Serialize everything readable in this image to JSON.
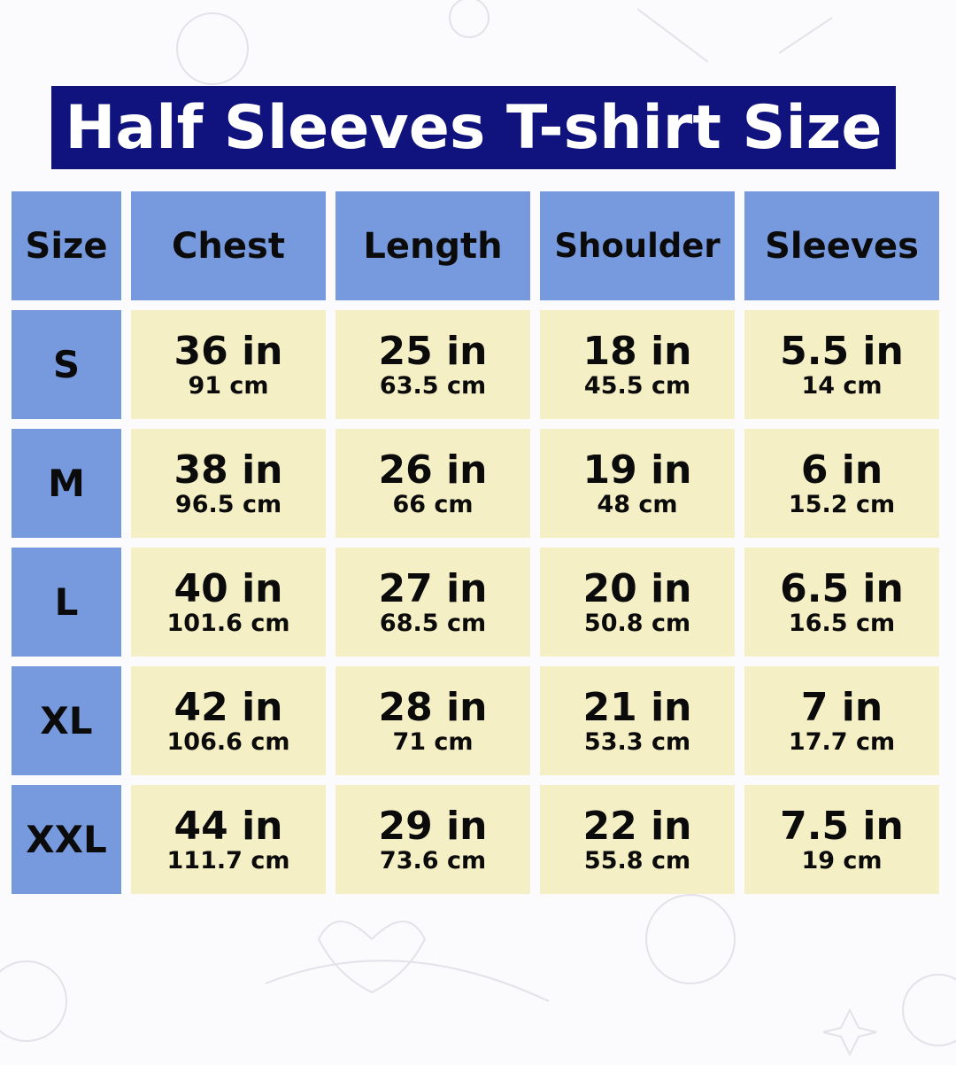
{
  "title": "Half Sleeves T-shirt Size",
  "colors": {
    "title_bg": "#10127e",
    "header_bg": "#7799dd",
    "cell_bg": "#f5efc6"
  },
  "headers": [
    "Size",
    "Chest",
    "Length",
    "Shoulder",
    "Sleeves"
  ],
  "rows": [
    {
      "size": "S",
      "cells": [
        {
          "in": "36 in",
          "cm": "91 cm"
        },
        {
          "in": "25 in",
          "cm": "63.5 cm"
        },
        {
          "in": "18 in",
          "cm": "45.5 cm"
        },
        {
          "in": "5.5 in",
          "cm": "14 cm"
        }
      ]
    },
    {
      "size": "M",
      "cells": [
        {
          "in": "38 in",
          "cm": "96.5 cm"
        },
        {
          "in": "26 in",
          "cm": "66 cm"
        },
        {
          "in": "19 in",
          "cm": "48 cm"
        },
        {
          "in": "6 in",
          "cm": "15.2 cm"
        }
      ]
    },
    {
      "size": "L",
      "cells": [
        {
          "in": "40 in",
          "cm": "101.6 cm"
        },
        {
          "in": "27 in",
          "cm": "68.5 cm"
        },
        {
          "in": "20 in",
          "cm": "50.8 cm"
        },
        {
          "in": "6.5 in",
          "cm": "16.5 cm"
        }
      ]
    },
    {
      "size": "XL",
      "cells": [
        {
          "in": "42 in",
          "cm": "106.6 cm"
        },
        {
          "in": "28 in",
          "cm": "71 cm"
        },
        {
          "in": "21 in",
          "cm": "53.3 cm"
        },
        {
          "in": "7 in",
          "cm": "17.7 cm"
        }
      ]
    },
    {
      "size": "XXL",
      "cells": [
        {
          "in": "44 in",
          "cm": "111.7 cm"
        },
        {
          "in": "29 in",
          "cm": "73.6 cm"
        },
        {
          "in": "22 in",
          "cm": "55.8 cm"
        },
        {
          "in": "7.5 in",
          "cm": "19 cm"
        }
      ]
    }
  ]
}
